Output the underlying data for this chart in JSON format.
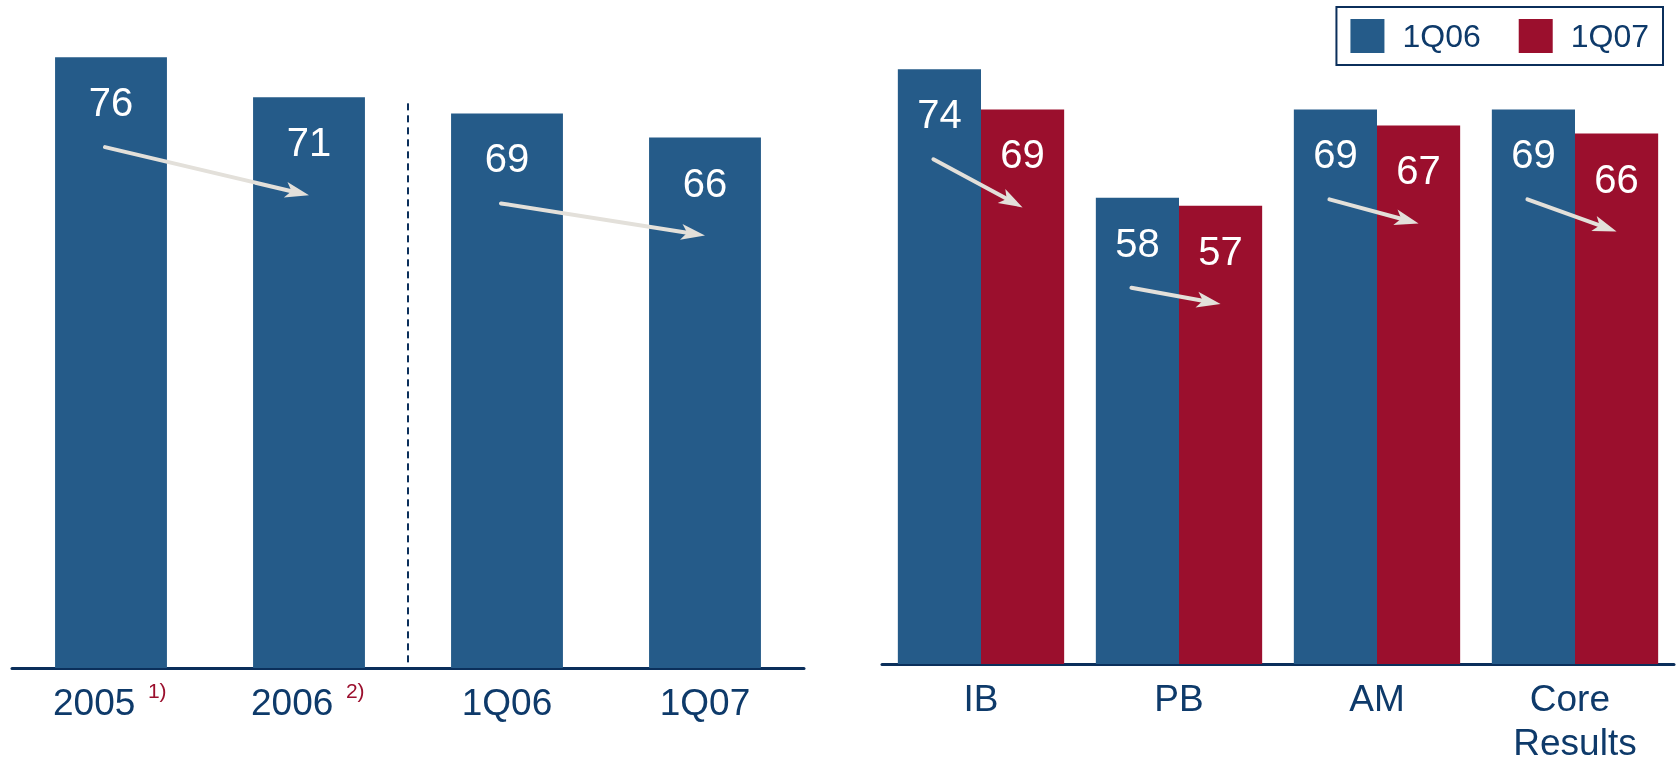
{
  "chart_data": [
    {
      "type": "bar",
      "categories": [
        "2005 $^{1)}$",
        "2006 $^{2)}$",
        "1Q06",
        "1Q07"
      ],
      "values": [
        76,
        71,
        69,
        66
      ],
      "color": "#255b89",
      "data_labels": true,
      "tick_labels": "x"
    },
    {
      "type": "bar",
      "categories": [
        "IB",
        "PB",
        "AM",
        "Core Results"
      ],
      "series": [
        {
          "name": "1Q06",
          "color": "#255b89",
          "values": [
            74,
            58,
            69,
            69
          ]
        },
        {
          "name": "1Q07",
          "color": "#9b0f2d",
          "values": [
            69,
            57,
            67,
            66
          ]
        }
      ],
      "data_labels": true,
      "tick_labels": "x",
      "legend": "top right"
    }
  ]
}
